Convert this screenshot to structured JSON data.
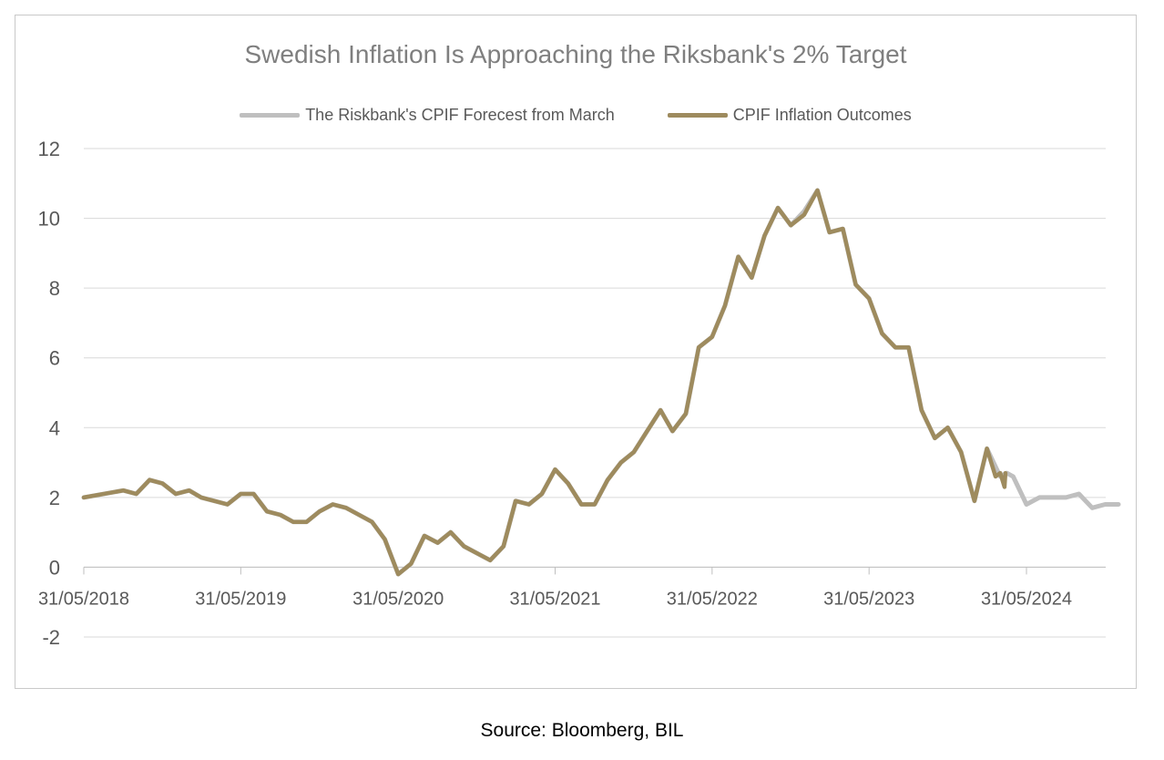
{
  "chart_data": {
    "type": "line",
    "title": "Swedish Inflation Is Approaching the Riksbank's 2% Target",
    "xlabel": "",
    "ylabel": "",
    "ylim": [
      -2,
      12
    ],
    "yticks": [
      -2,
      0,
      2,
      4,
      6,
      8,
      10,
      12
    ],
    "xlim": [
      "2018-05-31",
      "2024-12-31"
    ],
    "xticks": [
      "2018-05-31",
      "2019-05-31",
      "2020-05-31",
      "2021-05-31",
      "2022-05-31",
      "2023-05-31",
      "2024-05-31"
    ],
    "xtick_labels": [
      "31/05/2018",
      "31/05/2019",
      "31/05/2020",
      "31/05/2021",
      "31/05/2022",
      "31/05/2023",
      "31/05/2024"
    ],
    "grid": "horizontal",
    "legend_position": "top",
    "series": [
      {
        "name": "The Riskbank's CPIF Forecest from March",
        "color": "#bfbfbf",
        "points": [
          [
            "2018-05-31",
            2.0
          ],
          [
            "2018-08-31",
            2.2
          ],
          [
            "2018-09-30",
            2.1
          ],
          [
            "2018-10-31",
            2.5
          ],
          [
            "2018-11-30",
            2.4
          ],
          [
            "2018-12-31",
            2.1
          ],
          [
            "2019-01-31",
            2.2
          ],
          [
            "2019-02-28",
            2.0
          ],
          [
            "2019-04-30",
            1.8
          ],
          [
            "2019-05-31",
            2.1
          ],
          [
            "2019-06-30",
            2.1
          ],
          [
            "2019-07-31",
            1.6
          ],
          [
            "2019-08-31",
            1.5
          ],
          [
            "2019-09-30",
            1.3
          ],
          [
            "2019-10-31",
            1.3
          ],
          [
            "2019-11-30",
            1.6
          ],
          [
            "2019-12-31",
            1.8
          ],
          [
            "2020-01-31",
            1.7
          ],
          [
            "2020-03-31",
            1.3
          ],
          [
            "2020-04-30",
            0.8
          ],
          [
            "2020-05-31",
            -0.2
          ],
          [
            "2020-06-30",
            0.1
          ],
          [
            "2020-07-31",
            0.9
          ],
          [
            "2020-08-31",
            0.7
          ],
          [
            "2020-09-30",
            1.0
          ],
          [
            "2020-10-31",
            0.6
          ],
          [
            "2020-12-31",
            0.2
          ],
          [
            "2021-01-31",
            0.6
          ],
          [
            "2021-02-28",
            1.9
          ],
          [
            "2021-03-31",
            1.8
          ],
          [
            "2021-04-30",
            2.1
          ],
          [
            "2021-05-31",
            2.8
          ],
          [
            "2021-06-30",
            2.4
          ],
          [
            "2021-07-31",
            1.8
          ],
          [
            "2021-08-31",
            1.8
          ],
          [
            "2021-09-30",
            2.5
          ],
          [
            "2021-10-31",
            3.0
          ],
          [
            "2021-11-30",
            3.3
          ],
          [
            "2021-12-31",
            3.9
          ],
          [
            "2022-01-31",
            4.5
          ],
          [
            "2022-02-28",
            3.9
          ],
          [
            "2022-03-31",
            4.4
          ],
          [
            "2022-04-30",
            6.3
          ],
          [
            "2022-05-31",
            6.6
          ],
          [
            "2022-06-30",
            7.5
          ],
          [
            "2022-07-31",
            8.9
          ],
          [
            "2022-08-31",
            8.3
          ],
          [
            "2022-09-30",
            9.5
          ],
          [
            "2022-10-31",
            10.3
          ],
          [
            "2022-11-30",
            9.8
          ],
          [
            "2022-12-31",
            10.2
          ],
          [
            "2023-01-31",
            10.8
          ],
          [
            "2023-02-28",
            9.6
          ],
          [
            "2023-03-31",
            9.7
          ],
          [
            "2023-04-30",
            8.1
          ],
          [
            "2023-05-31",
            7.7
          ],
          [
            "2023-06-30",
            6.7
          ],
          [
            "2023-07-31",
            6.3
          ],
          [
            "2023-08-31",
            6.3
          ],
          [
            "2023-09-30",
            4.5
          ],
          [
            "2023-10-31",
            3.7
          ],
          [
            "2023-11-30",
            4.0
          ],
          [
            "2023-12-31",
            3.3
          ],
          [
            "2024-01-31",
            1.9
          ],
          [
            "2024-02-29",
            3.4
          ],
          [
            "2024-03-31",
            2.6
          ],
          [
            "2024-04-15",
            2.7
          ],
          [
            "2024-04-30",
            2.6
          ],
          [
            "2024-05-31",
            1.8
          ],
          [
            "2024-06-30",
            2.0
          ],
          [
            "2024-07-31",
            2.0
          ],
          [
            "2024-08-31",
            2.0
          ],
          [
            "2024-09-30",
            2.1
          ],
          [
            "2024-10-31",
            1.7
          ],
          [
            "2024-11-30",
            1.8
          ],
          [
            "2024-12-31",
            1.8
          ]
        ]
      },
      {
        "name": "CPIF Inflation Outcomes",
        "color": "#9e8b5e",
        "points": [
          [
            "2018-05-31",
            2.0
          ],
          [
            "2018-08-31",
            2.2
          ],
          [
            "2018-09-30",
            2.1
          ],
          [
            "2018-10-31",
            2.5
          ],
          [
            "2018-11-30",
            2.4
          ],
          [
            "2018-12-31",
            2.1
          ],
          [
            "2019-01-31",
            2.2
          ],
          [
            "2019-02-28",
            2.0
          ],
          [
            "2019-04-30",
            1.8
          ],
          [
            "2019-05-31",
            2.1
          ],
          [
            "2019-06-30",
            2.1
          ],
          [
            "2019-07-31",
            1.6
          ],
          [
            "2019-08-31",
            1.5
          ],
          [
            "2019-09-30",
            1.3
          ],
          [
            "2019-10-31",
            1.3
          ],
          [
            "2019-11-30",
            1.6
          ],
          [
            "2019-12-31",
            1.8
          ],
          [
            "2020-01-31",
            1.7
          ],
          [
            "2020-03-31",
            1.3
          ],
          [
            "2020-04-30",
            0.8
          ],
          [
            "2020-05-31",
            -0.2
          ],
          [
            "2020-06-30",
            0.1
          ],
          [
            "2020-07-31",
            0.9
          ],
          [
            "2020-08-31",
            0.7
          ],
          [
            "2020-09-30",
            1.0
          ],
          [
            "2020-10-31",
            0.6
          ],
          [
            "2020-12-31",
            0.2
          ],
          [
            "2021-01-31",
            0.6
          ],
          [
            "2021-02-28",
            1.9
          ],
          [
            "2021-03-31",
            1.8
          ],
          [
            "2021-04-30",
            2.1
          ],
          [
            "2021-05-31",
            2.8
          ],
          [
            "2021-06-30",
            2.4
          ],
          [
            "2021-07-31",
            1.8
          ],
          [
            "2021-08-31",
            1.8
          ],
          [
            "2021-09-30",
            2.5
          ],
          [
            "2021-10-31",
            3.0
          ],
          [
            "2021-11-30",
            3.3
          ],
          [
            "2021-12-31",
            3.9
          ],
          [
            "2022-01-31",
            4.5
          ],
          [
            "2022-02-28",
            3.9
          ],
          [
            "2022-03-31",
            4.4
          ],
          [
            "2022-04-30",
            6.3
          ],
          [
            "2022-05-31",
            6.6
          ],
          [
            "2022-06-30",
            7.5
          ],
          [
            "2022-07-31",
            8.9
          ],
          [
            "2022-08-31",
            8.3
          ],
          [
            "2022-09-30",
            9.5
          ],
          [
            "2022-10-31",
            10.3
          ],
          [
            "2022-11-30",
            9.8
          ],
          [
            "2022-12-31",
            10.1
          ],
          [
            "2023-01-31",
            10.8
          ],
          [
            "2023-02-28",
            9.6
          ],
          [
            "2023-03-31",
            9.7
          ],
          [
            "2023-04-30",
            8.1
          ],
          [
            "2023-05-31",
            7.7
          ],
          [
            "2023-06-30",
            6.7
          ],
          [
            "2023-07-31",
            6.3
          ],
          [
            "2023-08-31",
            6.3
          ],
          [
            "2023-09-30",
            4.5
          ],
          [
            "2023-10-31",
            3.7
          ],
          [
            "2023-11-30",
            4.0
          ],
          [
            "2023-12-31",
            3.3
          ],
          [
            "2024-01-31",
            1.9
          ],
          [
            "2024-02-29",
            3.4
          ],
          [
            "2024-03-20",
            2.6
          ],
          [
            "2024-03-31",
            2.7
          ],
          [
            "2024-04-10",
            2.3
          ],
          [
            "2024-04-12",
            2.7
          ]
        ]
      }
    ]
  },
  "source": "Source: Bloomberg, BIL"
}
